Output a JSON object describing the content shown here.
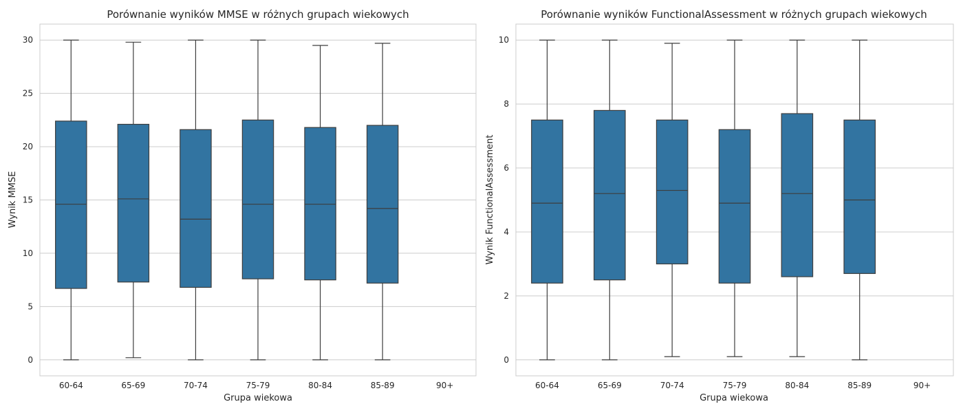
{
  "chart_data": [
    {
      "type": "box",
      "title": "Porównanie wyników MMSE w różnych grupach wiekowych",
      "xlabel": "Grupa wiekowa",
      "ylabel": "Wynik MMSE",
      "categories": [
        "60-64",
        "65-69",
        "70-74",
        "75-79",
        "80-84",
        "85-89",
        "90+"
      ],
      "yticks": [
        0,
        5,
        10,
        15,
        20,
        25,
        30
      ],
      "ylim": [
        -1.5,
        31.5
      ],
      "grid": true,
      "box_color": "#3274a1",
      "boxes": [
        {
          "category": "60-64",
          "min": 0.0,
          "q1": 6.7,
          "median": 14.6,
          "q3": 22.4,
          "max": 30.0
        },
        {
          "category": "65-69",
          "min": 0.2,
          "q1": 7.3,
          "median": 15.1,
          "q3": 22.1,
          "max": 29.8
        },
        {
          "category": "70-74",
          "min": 0.0,
          "q1": 6.8,
          "median": 13.2,
          "q3": 21.6,
          "max": 30.0
        },
        {
          "category": "75-79",
          "min": 0.0,
          "q1": 7.6,
          "median": 14.6,
          "q3": 22.5,
          "max": 30.0
        },
        {
          "category": "80-84",
          "min": 0.0,
          "q1": 7.5,
          "median": 14.6,
          "q3": 21.8,
          "max": 29.5
        },
        {
          "category": "85-89",
          "min": 0.0,
          "q1": 7.2,
          "median": 14.2,
          "q3": 22.0,
          "max": 29.7
        }
      ]
    },
    {
      "type": "box",
      "title": "Porównanie wyników FunctionalAssessment w różnych grupach wiekowych",
      "xlabel": "Grupa wiekowa",
      "ylabel": "Wynik FunctionalAssessment",
      "categories": [
        "60-64",
        "65-69",
        "70-74",
        "75-79",
        "80-84",
        "85-89",
        "90+"
      ],
      "yticks": [
        0,
        2,
        4,
        6,
        8,
        10
      ],
      "ylim": [
        -0.5,
        10.5
      ],
      "grid": true,
      "box_color": "#3274a1",
      "boxes": [
        {
          "category": "60-64",
          "min": 0.0,
          "q1": 2.4,
          "median": 4.9,
          "q3": 7.5,
          "max": 10.0
        },
        {
          "category": "65-69",
          "min": 0.0,
          "q1": 2.5,
          "median": 5.2,
          "q3": 7.8,
          "max": 10.0
        },
        {
          "category": "70-74",
          "min": 0.1,
          "q1": 3.0,
          "median": 5.3,
          "q3": 7.5,
          "max": 9.9
        },
        {
          "category": "75-79",
          "min": 0.1,
          "q1": 2.4,
          "median": 4.9,
          "q3": 7.2,
          "max": 10.0
        },
        {
          "category": "80-84",
          "min": 0.1,
          "q1": 2.6,
          "median": 5.2,
          "q3": 7.7,
          "max": 10.0
        },
        {
          "category": "85-89",
          "min": 0.0,
          "q1": 2.7,
          "median": 5.0,
          "q3": 7.5,
          "max": 10.0
        }
      ]
    }
  ]
}
